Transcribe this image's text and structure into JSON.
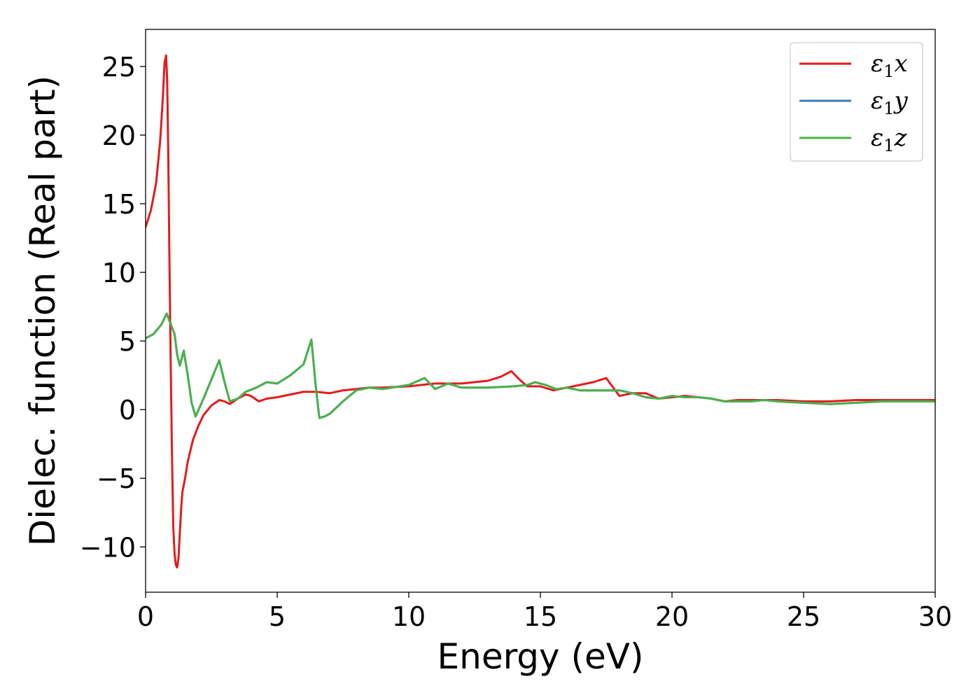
{
  "chart_data": {
    "type": "line",
    "xlabel": "Energy (eV)",
    "ylabel": "Dielec. function (Real part)",
    "xlim": [
      0,
      30
    ],
    "ylim": [
      -13.3,
      27.7
    ],
    "x_ticks": [
      0,
      5,
      10,
      15,
      20,
      25,
      30
    ],
    "x_tick_labels": [
      "0",
      "5",
      "10",
      "15",
      "20",
      "25",
      "30"
    ],
    "y_ticks": [
      -10,
      -5,
      0,
      5,
      10,
      15,
      20,
      25
    ],
    "y_tick_labels": [
      "−10",
      "−5",
      "0",
      "5",
      "10",
      "15",
      "20",
      "25"
    ],
    "grid": false,
    "legend_position": "top-right",
    "colors": {
      "x": "#e41a1c",
      "y": "#377eb8",
      "z": "#4daf4a"
    },
    "series": [
      {
        "key": "x",
        "name": "ε1x",
        "legend_main": "ε",
        "legend_sub": "1",
        "legend_tail": "x",
        "color": "#e41a1c",
        "x": [
          0,
          0.2,
          0.4,
          0.55,
          0.65,
          0.72,
          0.78,
          0.82,
          0.86,
          0.9,
          0.95,
          1.0,
          1.05,
          1.1,
          1.15,
          1.2,
          1.25,
          1.3,
          1.35,
          1.4,
          1.5,
          1.6,
          1.8,
          2.0,
          2.2,
          2.5,
          2.8,
          3.0,
          3.2,
          3.5,
          3.8,
          4.0,
          4.3,
          4.6,
          5.0,
          5.5,
          6.0,
          6.5,
          7.0,
          7.5,
          8.0,
          8.5,
          9.0,
          10.0,
          11.0,
          12.0,
          13.0,
          13.5,
          13.9,
          14.2,
          14.5,
          15.0,
          15.5,
          16.0,
          16.5,
          17.0,
          17.5,
          18.0,
          18.5,
          19.0,
          19.5,
          20.0,
          20.5,
          21.0,
          21.5,
          22.0,
          22.5,
          23.0,
          24.0,
          25.0,
          25.5,
          26.0,
          27.0,
          28.0,
          29.0,
          30.0
        ],
        "y": [
          13.3,
          14.5,
          16.5,
          19.5,
          22.5,
          25.3,
          25.8,
          24.0,
          19.0,
          12.0,
          4.0,
          -3.0,
          -8.5,
          -10.5,
          -11.3,
          -11.5,
          -10.8,
          -9.0,
          -7.2,
          -6.0,
          -5.0,
          -3.8,
          -2.2,
          -1.2,
          -0.4,
          0.3,
          0.7,
          0.6,
          0.4,
          0.8,
          1.1,
          1.0,
          0.6,
          0.8,
          0.9,
          1.1,
          1.3,
          1.3,
          1.2,
          1.4,
          1.5,
          1.6,
          1.6,
          1.7,
          1.9,
          1.9,
          2.1,
          2.4,
          2.8,
          2.2,
          1.7,
          1.7,
          1.4,
          1.6,
          1.8,
          2.0,
          2.3,
          1.0,
          1.2,
          1.2,
          0.8,
          0.9,
          1.0,
          0.9,
          0.8,
          0.6,
          0.7,
          0.7,
          0.7,
          0.6,
          0.6,
          0.6,
          0.7,
          0.7,
          0.7,
          0.7
        ]
      },
      {
        "key": "y",
        "name": "ε1y",
        "legend_main": "ε",
        "legend_sub": "1",
        "legend_tail": "y",
        "color": "#377eb8",
        "x": [
          0,
          0.3,
          0.6,
          0.8,
          0.9,
          1.0,
          1.1,
          1.2,
          1.3,
          1.45,
          1.6,
          1.75,
          1.9,
          2.2,
          2.5,
          2.8,
          3.0,
          3.2,
          3.5,
          3.8,
          4.2,
          4.6,
          5.0,
          5.5,
          6.0,
          6.2,
          6.3,
          6.45,
          6.6,
          6.8,
          7.0,
          7.5,
          8.0,
          8.5,
          9.0,
          10.0,
          10.6,
          11.0,
          11.5,
          12.0,
          13.0,
          14.0,
          14.5,
          14.8,
          15.2,
          15.6,
          16.0,
          16.5,
          17.0,
          17.5,
          18.0,
          18.5,
          19.0,
          19.5,
          20.0,
          20.5,
          21.0,
          21.5,
          22.0,
          23.0,
          23.5,
          24.0,
          25.0,
          26.0,
          27.0,
          28.0,
          29.0,
          30.0
        ],
        "y": [
          5.2,
          5.5,
          6.2,
          7.0,
          6.5,
          6.0,
          5.5,
          4.0,
          3.2,
          4.3,
          2.5,
          0.5,
          -0.5,
          0.8,
          2.2,
          3.6,
          2.0,
          0.6,
          0.8,
          1.3,
          1.6,
          2.0,
          1.9,
          2.5,
          3.3,
          4.5,
          5.1,
          2.0,
          -0.6,
          -0.5,
          -0.3,
          0.6,
          1.4,
          1.6,
          1.5,
          1.8,
          2.3,
          1.5,
          1.9,
          1.6,
          1.6,
          1.7,
          1.8,
          2.0,
          1.8,
          1.5,
          1.6,
          1.4,
          1.4,
          1.4,
          1.4,
          1.2,
          0.9,
          0.8,
          1.0,
          0.9,
          0.9,
          0.8,
          0.6,
          0.6,
          0.7,
          0.6,
          0.5,
          0.4,
          0.5,
          0.6,
          0.6,
          0.6
        ]
      },
      {
        "key": "z",
        "name": "ε1z",
        "legend_main": "ε",
        "legend_sub": "1",
        "legend_tail": "z",
        "color": "#4daf4a",
        "x": [
          0,
          0.3,
          0.6,
          0.8,
          0.9,
          1.0,
          1.1,
          1.2,
          1.3,
          1.45,
          1.6,
          1.75,
          1.9,
          2.2,
          2.5,
          2.8,
          3.0,
          3.2,
          3.5,
          3.8,
          4.2,
          4.6,
          5.0,
          5.5,
          6.0,
          6.2,
          6.3,
          6.45,
          6.6,
          6.8,
          7.0,
          7.5,
          8.0,
          8.5,
          9.0,
          10.0,
          10.6,
          11.0,
          11.5,
          12.0,
          13.0,
          14.0,
          14.5,
          14.8,
          15.2,
          15.6,
          16.0,
          16.5,
          17.0,
          17.5,
          18.0,
          18.5,
          19.0,
          19.5,
          20.0,
          20.5,
          21.0,
          21.5,
          22.0,
          23.0,
          23.5,
          24.0,
          25.0,
          26.0,
          27.0,
          28.0,
          29.0,
          30.0
        ],
        "y": [
          5.2,
          5.5,
          6.2,
          7.0,
          6.5,
          6.0,
          5.5,
          4.0,
          3.2,
          4.3,
          2.5,
          0.5,
          -0.5,
          0.8,
          2.2,
          3.6,
          2.0,
          0.6,
          0.8,
          1.3,
          1.6,
          2.0,
          1.9,
          2.5,
          3.3,
          4.5,
          5.1,
          2.0,
          -0.6,
          -0.5,
          -0.3,
          0.6,
          1.4,
          1.6,
          1.5,
          1.8,
          2.3,
          1.5,
          1.9,
          1.6,
          1.6,
          1.7,
          1.8,
          2.0,
          1.8,
          1.5,
          1.6,
          1.4,
          1.4,
          1.4,
          1.4,
          1.2,
          0.9,
          0.8,
          1.0,
          0.9,
          0.9,
          0.8,
          0.6,
          0.6,
          0.7,
          0.6,
          0.5,
          0.4,
          0.5,
          0.6,
          0.6,
          0.6
        ]
      }
    ]
  }
}
